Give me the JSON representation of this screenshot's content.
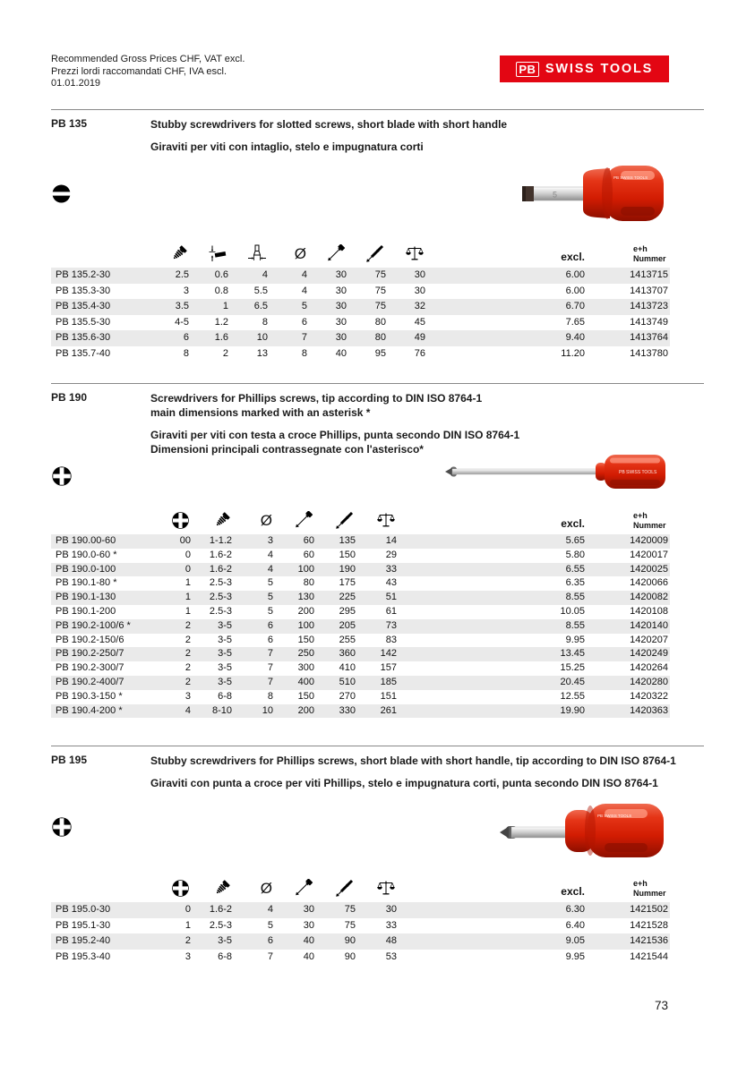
{
  "header": {
    "lines": [
      "Recommended Gross Prices CHF, VAT excl.",
      "Prezzi lordi raccomandati CHF, IVA escl.",
      "01.01.2019"
    ],
    "logo": {
      "pb": "PB",
      "name": "SWISS TOOLS"
    }
  },
  "page_number": "73",
  "colors": {
    "brand_red": "#e30613",
    "handle_red": "#d21c02",
    "row_stripe": "#eaeaea",
    "rule_gray": "#888888"
  },
  "sections": [
    {
      "id": "PB 135",
      "title_en": [
        "Stubby screwdrivers for slotted screws, short blade with short handle"
      ],
      "title_it": [
        "Giraviti per viti con intaglio, stelo e impugnatura corti"
      ],
      "type_icon": "slotted-screw-icon",
      "column_icons": [
        "screw-icon",
        "blade-thickness-icon",
        "blade-width-icon",
        "diameter-icon",
        "blade-length-icon",
        "total-length-icon",
        "weight-icon"
      ],
      "price_label": "excl.",
      "number_label": [
        "e+h",
        "Nummer"
      ],
      "product": {
        "handle_text": "PB SWISS TOOLS",
        "blade_mark": "5"
      },
      "rows": [
        {
          "name": "PB 135.2-30",
          "values": [
            "2.5",
            "0.6",
            "4",
            "4",
            "30",
            "75",
            "30"
          ],
          "price": "6.00",
          "number": "1413715"
        },
        {
          "name": "PB 135.3-30",
          "values": [
            "3",
            "0.8",
            "5.5",
            "4",
            "30",
            "75",
            "30"
          ],
          "price": "6.00",
          "number": "1413707"
        },
        {
          "name": "PB 135.4-30",
          "values": [
            "3.5",
            "1",
            "6.5",
            "5",
            "30",
            "75",
            "32"
          ],
          "price": "6.70",
          "number": "1413723"
        },
        {
          "name": "PB 135.5-30",
          "values": [
            "4-5",
            "1.2",
            "8",
            "6",
            "30",
            "80",
            "45"
          ],
          "price": "7.65",
          "number": "1413749"
        },
        {
          "name": "PB 135.6-30",
          "values": [
            "6",
            "1.6",
            "10",
            "7",
            "30",
            "80",
            "49"
          ],
          "price": "9.40",
          "number": "1413764"
        },
        {
          "name": "PB 135.7-40",
          "values": [
            "8",
            "2",
            "13",
            "8",
            "40",
            "95",
            "76"
          ],
          "price": "11.20",
          "number": "1413780"
        }
      ]
    },
    {
      "id": "PB 190",
      "title_en": [
        "Screwdrivers for Phillips screws, tip according to DIN ISO 8764-1",
        "main dimensions marked with an asterisk *"
      ],
      "title_it": [
        "Giraviti per viti con testa a croce Phillips, punta secondo DIN ISO 8764-1",
        "Dimensioni principali contrassegnate con l'asterisco*"
      ],
      "type_icon": "phillips-screw-icon",
      "column_icons": [
        "phillips-size-icon",
        "screw-icon",
        "diameter-icon",
        "blade-length-icon",
        "total-length-icon",
        "weight-icon"
      ],
      "price_label": "excl.",
      "number_label": [
        "e+h",
        "Nummer"
      ],
      "product": {
        "handle_text": "PB SWISS TOOLS"
      },
      "rows": [
        {
          "name": "PB 190.00-60",
          "values": [
            "00",
            "1-1.2",
            "3",
            "60",
            "135",
            "14"
          ],
          "price": "5.65",
          "number": "1420009"
        },
        {
          "name": "PB 190.0-60 *",
          "values": [
            "0",
            "1.6-2",
            "4",
            "60",
            "150",
            "29"
          ],
          "price": "5.80",
          "number": "1420017"
        },
        {
          "name": "PB 190.0-100",
          "values": [
            "0",
            "1.6-2",
            "4",
            "100",
            "190",
            "33"
          ],
          "price": "6.55",
          "number": "1420025"
        },
        {
          "name": "PB 190.1-80 *",
          "values": [
            "1",
            "2.5-3",
            "5",
            "80",
            "175",
            "43"
          ],
          "price": "6.35",
          "number": "1420066"
        },
        {
          "name": "PB 190.1-130",
          "values": [
            "1",
            "2.5-3",
            "5",
            "130",
            "225",
            "51"
          ],
          "price": "8.55",
          "number": "1420082"
        },
        {
          "name": "PB 190.1-200",
          "values": [
            "1",
            "2.5-3",
            "5",
            "200",
            "295",
            "61"
          ],
          "price": "10.05",
          "number": "1420108"
        },
        {
          "name": "PB 190.2-100/6 *",
          "values": [
            "2",
            "3-5",
            "6",
            "100",
            "205",
            "73"
          ],
          "price": "8.55",
          "number": "1420140"
        },
        {
          "name": "PB 190.2-150/6",
          "values": [
            "2",
            "3-5",
            "6",
            "150",
            "255",
            "83"
          ],
          "price": "9.95",
          "number": "1420207"
        },
        {
          "name": "PB 190.2-250/7",
          "values": [
            "2",
            "3-5",
            "7",
            "250",
            "360",
            "142"
          ],
          "price": "13.45",
          "number": "1420249"
        },
        {
          "name": "PB 190.2-300/7",
          "values": [
            "2",
            "3-5",
            "7",
            "300",
            "410",
            "157"
          ],
          "price": "15.25",
          "number": "1420264"
        },
        {
          "name": "PB 190.2-400/7",
          "values": [
            "2",
            "3-5",
            "7",
            "400",
            "510",
            "185"
          ],
          "price": "20.45",
          "number": "1420280"
        },
        {
          "name": "PB 190.3-150 *",
          "values": [
            "3",
            "6-8",
            "8",
            "150",
            "270",
            "151"
          ],
          "price": "12.55",
          "number": "1420322"
        },
        {
          "name": "PB 190.4-200 *",
          "values": [
            "4",
            "8-10",
            "10",
            "200",
            "330",
            "261"
          ],
          "price": "19.90",
          "number": "1420363"
        }
      ]
    },
    {
      "id": "PB 195",
      "title_en": [
        "Stubby screwdrivers for Phillips screws, short blade with short handle, tip according to DIN ISO 8764-1"
      ],
      "title_it": [
        "Giraviti con punta a croce per viti Phillips, stelo e impugnatura corti, punta secondo DIN ISO 8764-1"
      ],
      "type_icon": "phillips-screw-icon",
      "column_icons": [
        "phillips-size-icon",
        "screw-icon",
        "diameter-icon",
        "blade-length-icon",
        "total-length-icon",
        "weight-icon"
      ],
      "price_label": "excl.",
      "number_label": [
        "e+h",
        "Nummer"
      ],
      "product": {
        "handle_text": "PB SWISS TOOLS"
      },
      "rows": [
        {
          "name": "PB 195.0-30",
          "values": [
            "0",
            "1.6-2",
            "4",
            "30",
            "75",
            "30"
          ],
          "price": "6.30",
          "number": "1421502"
        },
        {
          "name": "PB 195.1-30",
          "values": [
            "1",
            "2.5-3",
            "5",
            "30",
            "75",
            "33"
          ],
          "price": "6.40",
          "number": "1421528"
        },
        {
          "name": "PB 195.2-40",
          "values": [
            "2",
            "3-5",
            "6",
            "40",
            "90",
            "48"
          ],
          "price": "9.05",
          "number": "1421536"
        },
        {
          "name": "PB 195.3-40",
          "values": [
            "3",
            "6-8",
            "7",
            "40",
            "90",
            "53"
          ],
          "price": "9.95",
          "number": "1421544"
        }
      ]
    }
  ]
}
